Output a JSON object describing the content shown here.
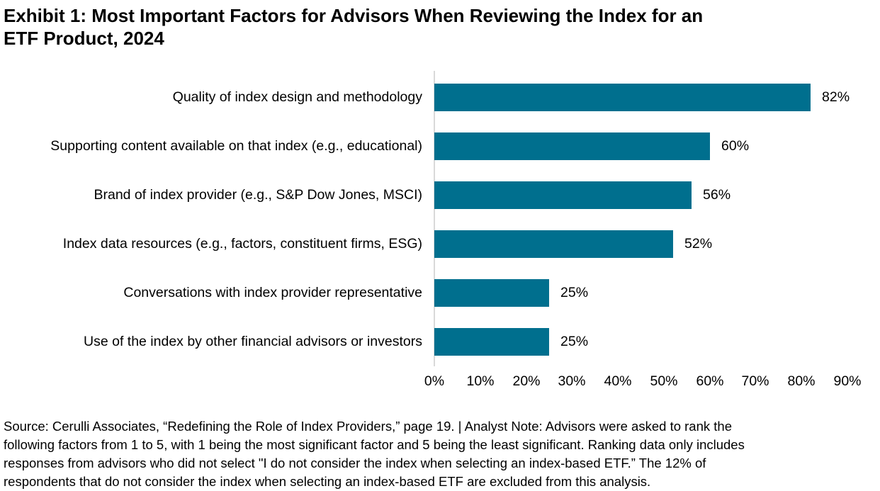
{
  "header": {
    "title_lines": [
      "Exhibit 1: Most Important Factors for Advisors When Reviewing the Index for an",
      "ETF Product, 2024"
    ]
  },
  "chart_data": {
    "type": "bar",
    "orientation": "horizontal",
    "title": "Exhibit 1: Most Important Factors for Advisors When Reviewing the Index for an ETF Product, 2024",
    "categories": [
      "Quality of index design and methodology",
      "Supporting content available on that index (e.g., educational)",
      "Brand of index provider (e.g., S&P Dow Jones, MSCI)",
      "Index data resources (e.g., factors, constituent firms, ESG)",
      "Conversations with index provider representative",
      "Use of the index by other financial advisors or investors"
    ],
    "values": [
      82,
      60,
      56,
      52,
      25,
      25
    ],
    "value_labels": [
      "82%",
      "60%",
      "56%",
      "52%",
      "25%",
      "25%"
    ],
    "x_tick_labels": [
      "0%",
      "10%",
      "20%",
      "30%",
      "40%",
      "50%",
      "60%",
      "70%",
      "80%",
      "90%"
    ],
    "xlim": [
      0,
      90
    ],
    "xlabel": "",
    "ylabel": "",
    "grid": false,
    "legend_position": "none",
    "bar_color": "#006F8E",
    "axis_line_color": "#D9D9D9",
    "text_color": "#000000"
  },
  "footer": {
    "lines": [
      "Source: Cerulli Associates, “Redefining the Role of Index Providers,” page 19. | Analyst Note: Advisors were asked to rank the",
      "following factors from 1 to 5, with 1 being the most significant factor and 5 being the least significant. Ranking data only includes",
      "responses from advisors who did not select \"I do not consider the index when selecting an index-based ETF.” The 12% of",
      "respondents that do not consider the index when selecting an index-based ETF are excluded from this analysis."
    ]
  }
}
